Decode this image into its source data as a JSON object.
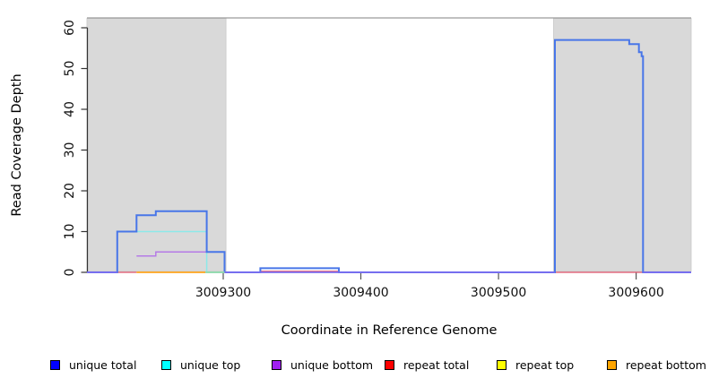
{
  "chart_data": {
    "type": "line",
    "title": "",
    "xlabel": "Coordinate in Reference Genome",
    "ylabel": "Read Coverage Depth",
    "xlim": [
      3009201,
      3009640
    ],
    "ylim": [
      0,
      62
    ],
    "x_ticks": [
      3009300,
      3009400,
      3009500,
      3009600
    ],
    "y_ticks": [
      0,
      10,
      20,
      30,
      40,
      50,
      60
    ],
    "grid": false,
    "legend_position": "bottom",
    "repeat_region_color": "#d9d9d9",
    "repeat_regions": [
      {
        "from": 3009201,
        "to": 3009302
      },
      {
        "from": 3009540,
        "to": 3009640
      }
    ],
    "series": [
      {
        "name": "unique top",
        "color": "#8ce9e9",
        "width": 1.5,
        "steps": [
          [
            3009223,
            10
          ],
          [
            3009288,
            0
          ],
          [
            3009301,
            0
          ]
        ]
      },
      {
        "name": "unique bottom",
        "color": "#b57be6",
        "width": 1.5,
        "steps": [
          [
            3009237,
            4
          ],
          [
            3009251,
            5
          ],
          [
            3009301,
            0
          ]
        ]
      },
      {
        "name": "unique total",
        "color": "#4876e8",
        "width": 2,
        "steps": [
          [
            3009201,
            0
          ],
          [
            3009223,
            10
          ],
          [
            3009237,
            14
          ],
          [
            3009251,
            15
          ],
          [
            3009288,
            5
          ],
          [
            3009301,
            0
          ],
          [
            3009327,
            1
          ],
          [
            3009384,
            0
          ],
          [
            3009541,
            57
          ],
          [
            3009595,
            56
          ],
          [
            3009602,
            54
          ],
          [
            3009604,
            53
          ],
          [
            3009605,
            0
          ],
          [
            3009640,
            0
          ]
        ]
      }
    ],
    "zero_line_segments_under": [
      {
        "series": "repeat total",
        "color": "#e0506a",
        "from": 3009223,
        "to": 3009237,
        "lift": 0,
        "w": 1.3
      },
      {
        "series": "repeat total",
        "color": "#e0506a",
        "from": 3009327,
        "to": 3009384,
        "lift": 1.1,
        "w": 1.2
      },
      {
        "series": "repeat total",
        "color": "#e0506a",
        "from": 3009541,
        "to": 3009605,
        "lift": 0,
        "w": 1.3
      },
      {
        "series": "repeat bottom",
        "color": "#ffa51e",
        "from": 3009237,
        "to": 3009287,
        "lift": 0,
        "w": 1.8
      }
    ],
    "zero_line_segments_over": [
      {
        "series": "unique top zero",
        "color": "#8fd9a8",
        "from": 3009287,
        "to": 3009301,
        "lift": 0,
        "w": 1.8
      },
      {
        "series": "baseline",
        "color": "#7d6ef0",
        "from": 3009201,
        "to": 3009223,
        "lift": 0,
        "w": 1.8
      },
      {
        "series": "baseline",
        "color": "#7d6ef0",
        "from": 3009301,
        "to": 3009541,
        "lift": 0,
        "w": 1.8
      },
      {
        "series": "baseline",
        "color": "#7d6ef0",
        "from": 3009605,
        "to": 3009640,
        "lift": 0,
        "w": 1.8
      }
    ]
  },
  "legend": {
    "items": [
      {
        "label": "unique total",
        "color": "#0000ff"
      },
      {
        "label": "unique top",
        "color": "#00ffff"
      },
      {
        "label": "unique bottom",
        "color": "#a020f0"
      },
      {
        "label": "repeat total",
        "color": "#ff0000"
      },
      {
        "label": "repeat top",
        "color": "#ffff00"
      },
      {
        "label": "repeat bottom",
        "color": "#ffa500"
      }
    ]
  }
}
